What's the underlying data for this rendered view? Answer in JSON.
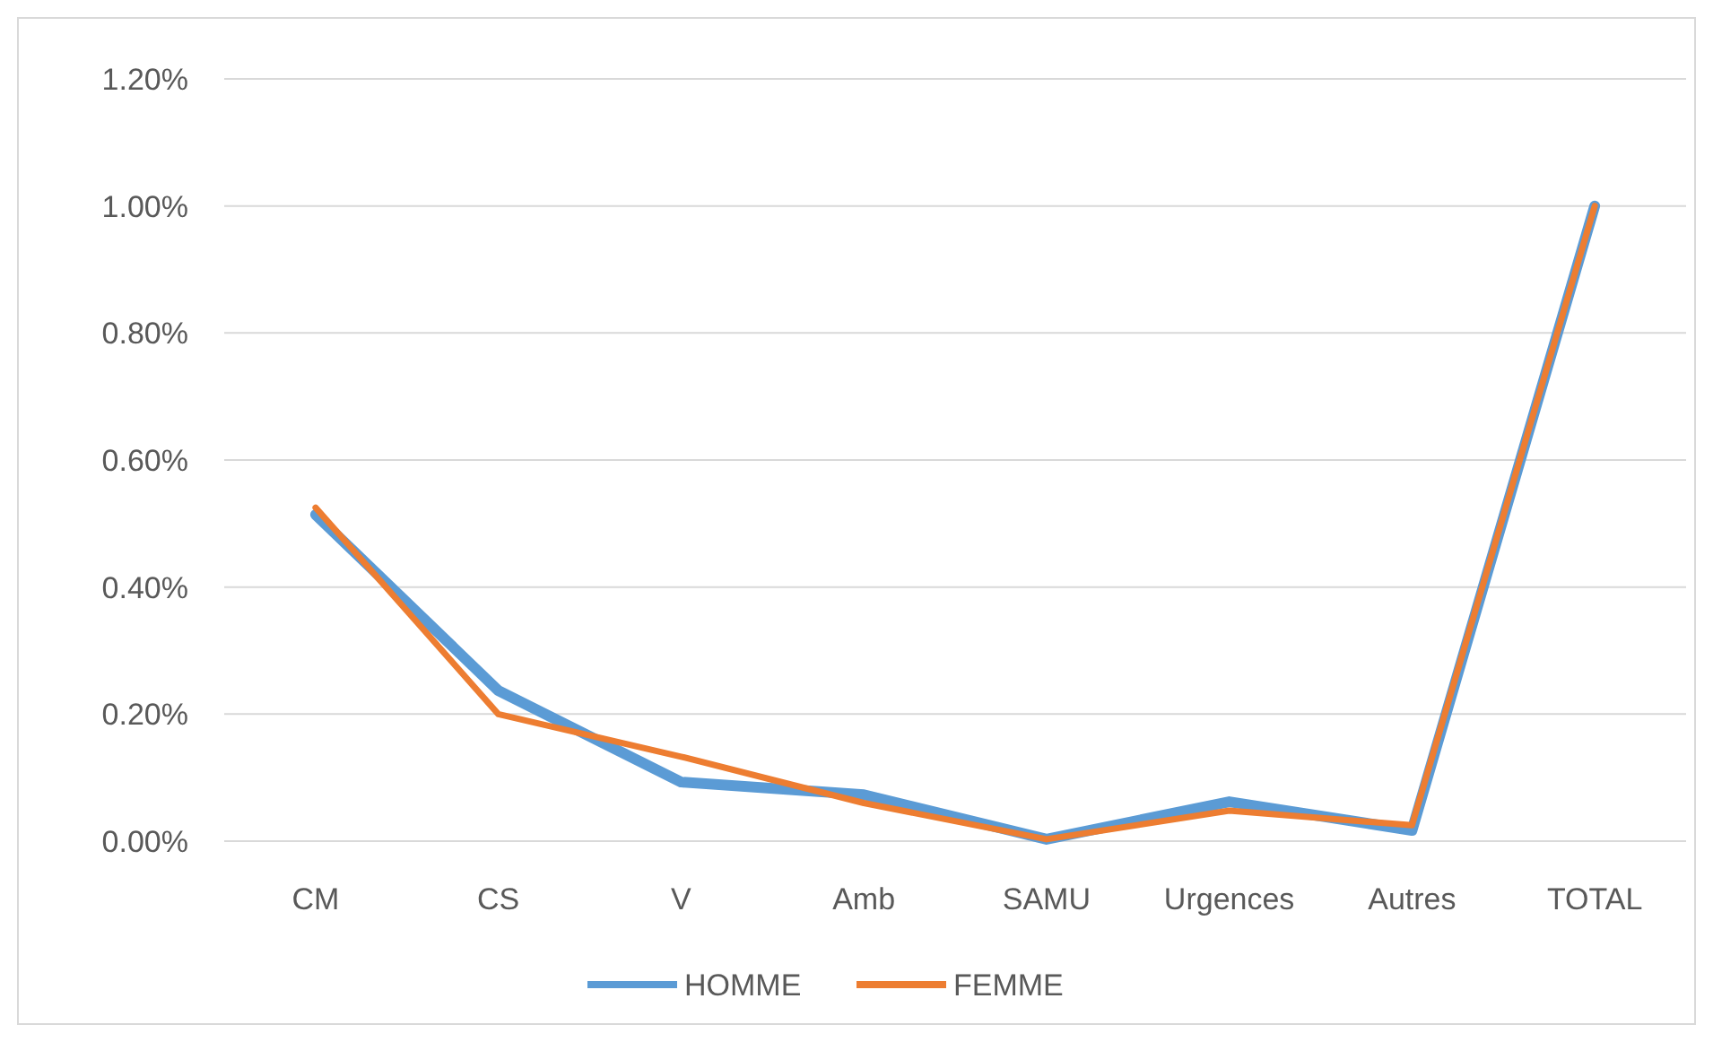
{
  "chart_data": {
    "type": "line",
    "categories": [
      "CM",
      "CS",
      "V",
      "Amb",
      "SAMU",
      "Urgences",
      "Autres",
      "TOTAL"
    ],
    "series": [
      {
        "name": "HOMME",
        "color": "#5b9bd5",
        "values": [
          0.514,
          0.237,
          0.093,
          0.073,
          0.003,
          0.062,
          0.017,
          1.0
        ]
      },
      {
        "name": "FEMME",
        "color": "#ed7d31",
        "values": [
          0.525,
          0.2,
          0.133,
          0.06,
          0.003,
          0.048,
          0.025,
          1.0
        ]
      }
    ],
    "ylim": [
      0,
      1.2
    ],
    "yticks": [
      {
        "value": 0,
        "label": "0.00%"
      },
      {
        "value": 0.2,
        "label": "0.20%"
      },
      {
        "value": 0.4,
        "label": "0.40%"
      },
      {
        "value": 0.6,
        "label": "0.60%"
      },
      {
        "value": 0.8,
        "label": "0.80%"
      },
      {
        "value": 1.0,
        "label": "1.00%"
      },
      {
        "value": 1.2,
        "label": "1.20%"
      }
    ],
    "grid": "y",
    "legend": "bottom",
    "marker": "none",
    "line_style": "solid"
  }
}
